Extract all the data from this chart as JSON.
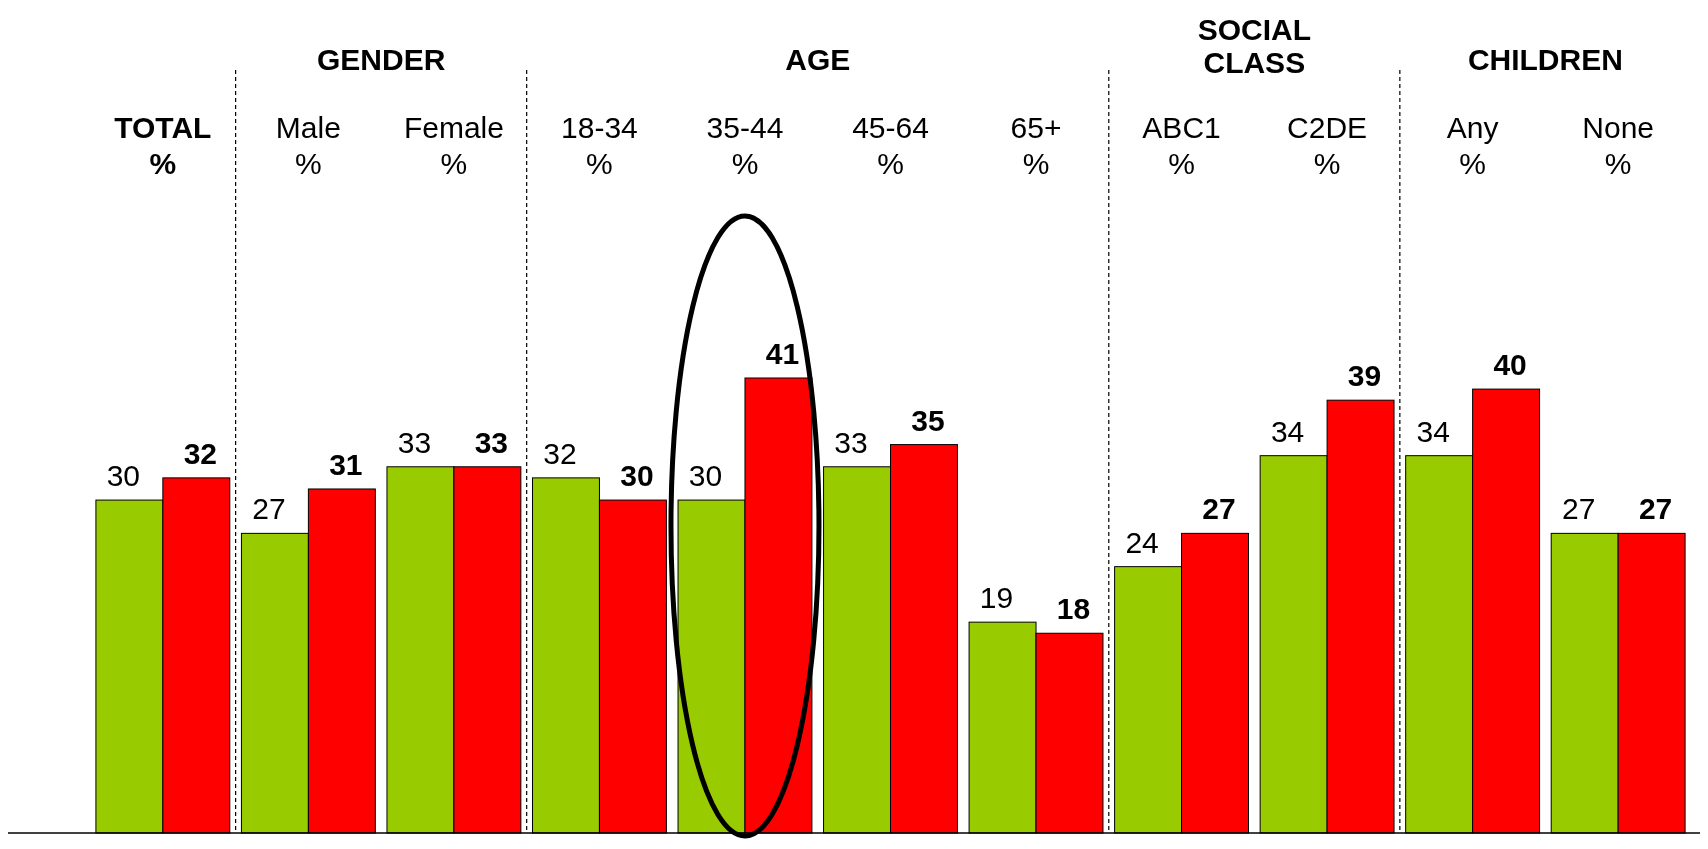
{
  "chart_data": {
    "type": "bar",
    "categories": [
      "TOTAL\n%",
      "Male\n%",
      "Female\n%",
      "18-34\n%",
      "35-44\n%",
      "45-64\n%",
      "65+\n%",
      "ABC1\n%",
      "C2DE\n%",
      "Any\n%",
      "None\n%"
    ],
    "series": [
      {
        "color": "#99cc00",
        "values": [
          30,
          27,
          33,
          32,
          30,
          33,
          19,
          24,
          34,
          34,
          27
        ]
      },
      {
        "color": "#ff0000",
        "values": [
          32,
          31,
          33,
          30,
          41,
          35,
          18,
          27,
          39,
          40,
          27
        ]
      }
    ],
    "data_labels": true,
    "annotations": [
      "GENDER",
      "AGE",
      "SOCIAL CLASS",
      "CHILDREN"
    ]
  }
}
